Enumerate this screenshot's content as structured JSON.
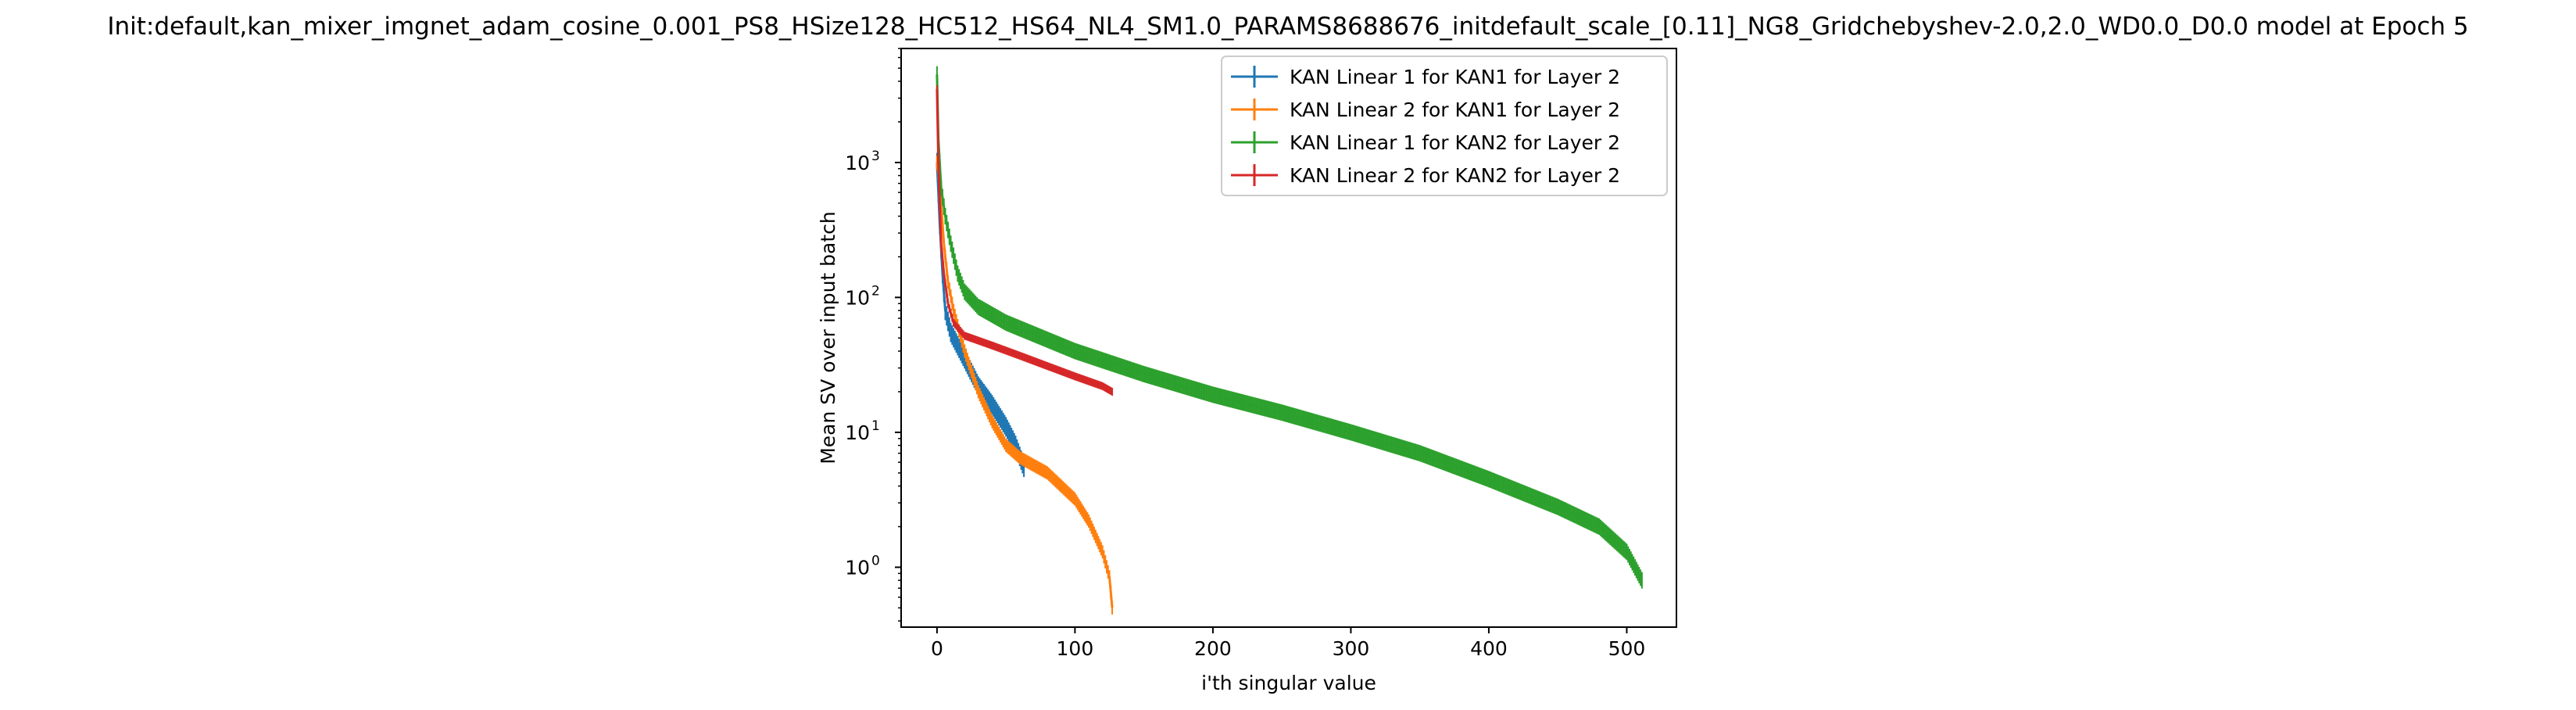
{
  "chart_data": {
    "type": "line",
    "title": "Init:default,kan_mixer_imgnet_adam_cosine_0.001_PS8_HSize128_HC512_HS64_NL4_SM1.0_PARAMS8688676_initdefault_scale_[0.11]_NG8_Gridchebyshev-2.0,2.0_WD0.0_D0.0 model at Epoch 5",
    "xlabel": "i'th singular value",
    "ylabel": "Mean SV over input batch",
    "xlim": [
      -26,
      536
    ],
    "ylim": [
      0.36,
      7000
    ],
    "yscale": "log",
    "x_ticks": [
      0,
      100,
      200,
      300,
      400,
      500
    ],
    "x_tick_labels": [
      "0",
      "100",
      "200",
      "300",
      "400",
      "500"
    ],
    "y_ticks": [
      1,
      10,
      100,
      1000
    ],
    "y_tick_labels": [
      "10",
      "10",
      "10",
      "10"
    ],
    "y_tick_exponents": [
      "0",
      "1",
      "2",
      "3"
    ],
    "legend_position": "upper right",
    "error_bars": true,
    "series": [
      {
        "name": "KAN Linear 1 for KAN1 for Layer 2",
        "color": "#1f77b4",
        "n": 64,
        "knots": [
          [
            0,
            1000
          ],
          [
            1,
            600
          ],
          [
            2,
            350
          ],
          [
            4,
            150
          ],
          [
            6,
            80
          ],
          [
            10,
            55
          ],
          [
            20,
            35
          ],
          [
            30,
            22
          ],
          [
            40,
            16
          ],
          [
            50,
            11
          ],
          [
            57,
            8
          ],
          [
            63,
            5.5
          ]
        ],
        "err_ratio": 1.18
      },
      {
        "name": "KAN Linear 2 for KAN1 for Layer 2",
        "color": "#ff7f0e",
        "n": 128,
        "knots": [
          [
            0,
            1000
          ],
          [
            2,
            700
          ],
          [
            5,
            250
          ],
          [
            8,
            130
          ],
          [
            12,
            80
          ],
          [
            20,
            40
          ],
          [
            30,
            20
          ],
          [
            40,
            12
          ],
          [
            50,
            8
          ],
          [
            60,
            6.5
          ],
          [
            80,
            5
          ],
          [
            100,
            3.2
          ],
          [
            110,
            2.2
          ],
          [
            120,
            1.3
          ],
          [
            125,
            0.85
          ],
          [
            127,
            0.5
          ]
        ],
        "err_ratio": 1.12
      },
      {
        "name": "KAN Linear 1 for KAN2 for Layer 2",
        "color": "#2ca02c",
        "n": 512,
        "knots": [
          [
            0,
            4500
          ],
          [
            1,
            1500
          ],
          [
            3,
            650
          ],
          [
            6,
            400
          ],
          [
            10,
            250
          ],
          [
            15,
            150
          ],
          [
            20,
            110
          ],
          [
            30,
            85
          ],
          [
            50,
            65
          ],
          [
            100,
            40
          ],
          [
            150,
            27
          ],
          [
            200,
            19
          ],
          [
            250,
            14
          ],
          [
            300,
            10
          ],
          [
            350,
            7
          ],
          [
            400,
            4.5
          ],
          [
            450,
            2.8
          ],
          [
            480,
            2
          ],
          [
            500,
            1.3
          ],
          [
            511,
            0.8
          ]
        ],
        "err_ratio": 1.15
      },
      {
        "name": "KAN Linear 2 for KAN2 for Layer 2",
        "color": "#d62728",
        "n": 128,
        "knots": [
          [
            0,
            3500
          ],
          [
            1,
            1000
          ],
          [
            3,
            250
          ],
          [
            5,
            150
          ],
          [
            8,
            90
          ],
          [
            12,
            65
          ],
          [
            20,
            52
          ],
          [
            40,
            44
          ],
          [
            60,
            37
          ],
          [
            80,
            31
          ],
          [
            100,
            26
          ],
          [
            120,
            22
          ],
          [
            127,
            20
          ]
        ],
        "err_ratio": 1.07
      }
    ]
  }
}
